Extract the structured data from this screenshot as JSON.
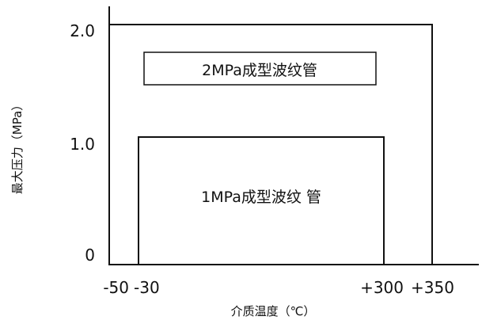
{
  "chart_data": {
    "type": "area",
    "title": "",
    "xlabel": "介质温度（℃）",
    "ylabel": "最大压力（MPa）",
    "x_ticks": [
      {
        "value": -50,
        "label": "-50"
      },
      {
        "value": -30,
        "label": "-30"
      },
      {
        "value": 300,
        "label": "+300"
      },
      {
        "value": 350,
        "label": "+350"
      }
    ],
    "y_ticks": [
      {
        "value": 0,
        "label": "0"
      },
      {
        "value": 1.0,
        "label": "1.0"
      },
      {
        "value": 2.0,
        "label": "2.0"
      }
    ],
    "regions": [
      {
        "label": "2MPa成型波纹管",
        "x_range": [
          -50,
          350
        ],
        "y_max": 2.0
      },
      {
        "label": "1MPa成型波纹 管",
        "x_range": [
          -30,
          300
        ],
        "y_max": 1.0
      }
    ]
  },
  "colors": {
    "line": "#111111",
    "background": "#ffffff"
  }
}
